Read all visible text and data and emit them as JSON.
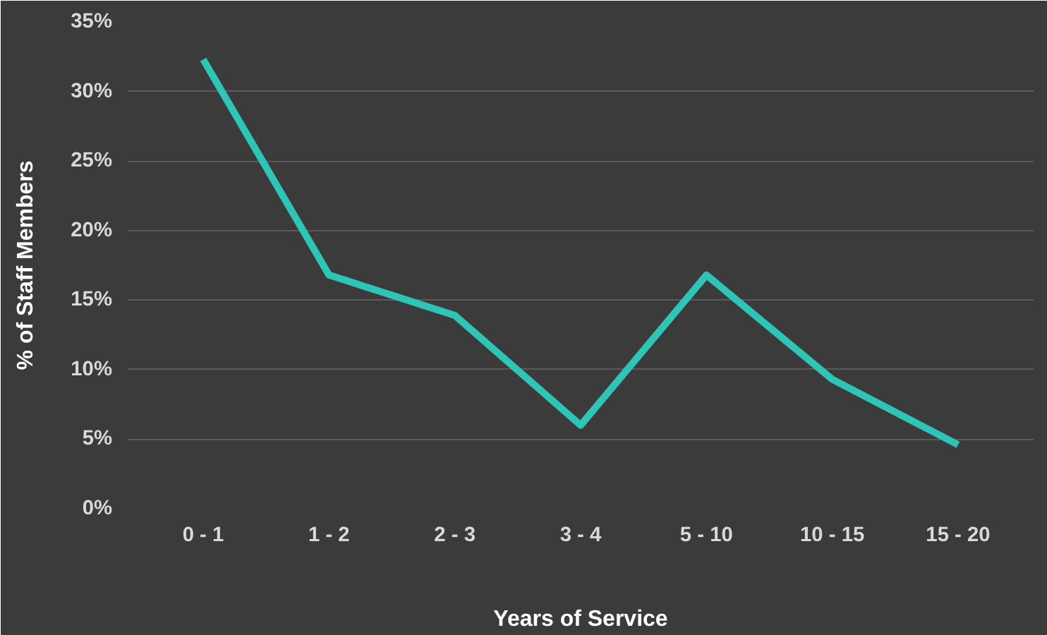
{
  "chart_data": {
    "type": "line",
    "xlabel": "Years of Service",
    "ylabel": "% of Staff Members",
    "categories": [
      "0 - 1",
      "1 - 2",
      "2 - 3",
      "3 - 4",
      "5 - 10",
      "10 - 15",
      "15 - 20"
    ],
    "series": [
      {
        "color": "#2ec4b6",
        "values": [
          32.3,
          16.8,
          13.9,
          6.0,
          16.8,
          9.3,
          4.6
        ]
      }
    ],
    "ylim": [
      0,
      35
    ],
    "yticks": [
      {
        "value": 0,
        "label": "0%"
      },
      {
        "value": 5,
        "label": "5%"
      },
      {
        "value": 10,
        "label": "10%"
      },
      {
        "value": 15,
        "label": "15%"
      },
      {
        "value": 20,
        "label": "20%"
      },
      {
        "value": 25,
        "label": "25%"
      },
      {
        "value": 30,
        "label": "30%"
      },
      {
        "value": 35,
        "label": "35%"
      }
    ],
    "grid": "y",
    "marker": "none",
    "line_style": "solid"
  }
}
